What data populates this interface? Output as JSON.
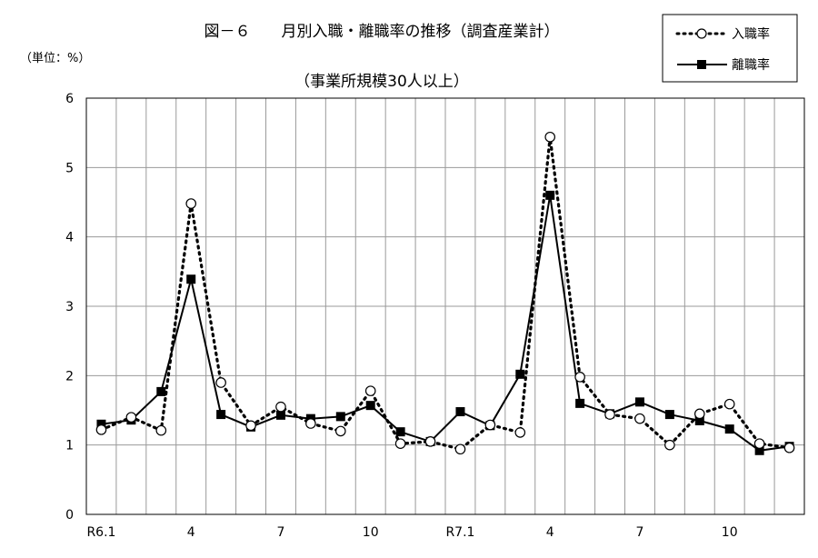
{
  "chart_data": {
    "type": "line",
    "title": "図－６　　月別入職・離職率の推移（調査産業計）",
    "subtitle": "（事業所規模30人以上）",
    "unit_label": "（単位：%）",
    "ylim": [
      0,
      6
    ],
    "y_ticks": [
      0,
      1,
      2,
      3,
      4,
      5,
      6
    ],
    "grid": true,
    "legend_position": "top-right",
    "x_tick_labels": [
      {
        "index": 0,
        "label": "R6.1"
      },
      {
        "index": 3,
        "label": "4"
      },
      {
        "index": 6,
        "label": "7"
      },
      {
        "index": 9,
        "label": "10"
      },
      {
        "index": 12,
        "label": "R7.1"
      },
      {
        "index": 15,
        "label": "4"
      },
      {
        "index": 18,
        "label": "7"
      },
      {
        "index": 21,
        "label": "10"
      }
    ],
    "series": [
      {
        "name": "入職率",
        "style": "dotted",
        "marker": "open-circle",
        "values": [
          1.22,
          1.4,
          1.21,
          4.48,
          1.9,
          1.28,
          1.55,
          1.31,
          1.2,
          1.78,
          1.02,
          1.05,
          0.94,
          1.29,
          1.18,
          5.44,
          1.98,
          1.44,
          1.38,
          1.0,
          1.45,
          1.59,
          1.02,
          0.96
        ]
      },
      {
        "name": "離職率",
        "style": "solid",
        "marker": "filled-square",
        "values": [
          1.3,
          1.36,
          1.77,
          3.39,
          1.44,
          1.26,
          1.43,
          1.38,
          1.41,
          1.57,
          1.19,
          1.05,
          1.48,
          1.28,
          2.02,
          4.6,
          1.6,
          1.45,
          1.62,
          1.44,
          1.35,
          1.23,
          0.92,
          0.98
        ]
      }
    ]
  }
}
